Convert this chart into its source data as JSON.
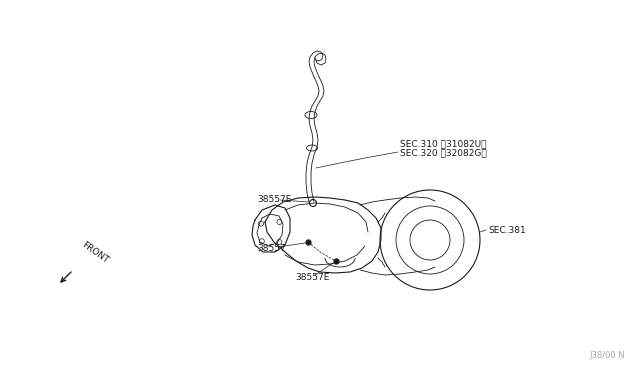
{
  "bg_color": "#ffffff",
  "line_color": "#1a1a1a",
  "labels": {
    "sec310": "SEC.310 〱31082U〳",
    "sec320": "SEC.320 〱32082G〳",
    "sec381": "SEC.381",
    "part38557E_top": "38557E",
    "part38557": "38557",
    "part38557E_bot": "38557E"
  },
  "watermark": "J38/00 N",
  "front_label": "FRONT"
}
